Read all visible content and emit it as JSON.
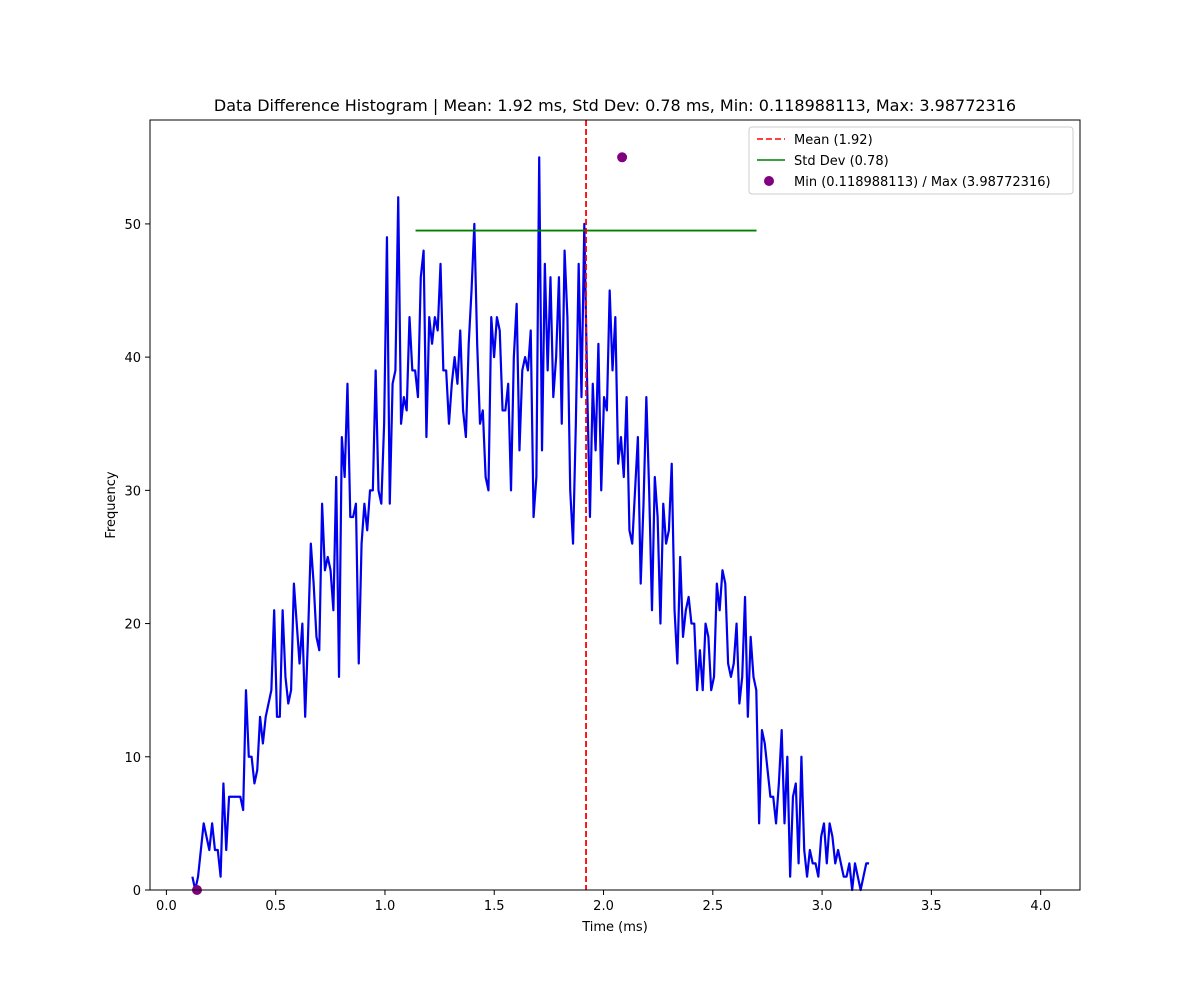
{
  "chart_data": {
    "type": "line",
    "title": "Data Difference Histogram | Mean: 1.92 ms, Std Dev: 0.78 ms, Min: 0.118988113, Max: 3.98772316",
    "xlabel": "Time (ms)",
    "ylabel": "Frequency",
    "xlim": [
      -0.075,
      4.18
    ],
    "ylim": [
      0,
      57.8
    ],
    "xticks": [
      0.0,
      0.5,
      1.0,
      1.5,
      2.0,
      2.5,
      3.0,
      3.5,
      4.0
    ],
    "xtick_labels": [
      "0.0",
      "0.5",
      "1.0",
      "1.5",
      "2.0",
      "2.5",
      "3.0",
      "3.5",
      "4.0"
    ],
    "yticks": [
      0,
      10,
      20,
      30,
      40,
      50
    ],
    "ytick_labels": [
      "0",
      "10",
      "20",
      "30",
      "40",
      "50"
    ],
    "grid": false,
    "legend_placement": "top-right",
    "series": [
      {
        "name": "",
        "color": "#0000ee",
        "x_start": 0.119,
        "x_step": 0.0129,
        "values": [
          1,
          0,
          1,
          3,
          5,
          4,
          3,
          5,
          3,
          3,
          1,
          8,
          3,
          7,
          7,
          7,
          7,
          7,
          6,
          15,
          10,
          10,
          8,
          9,
          13,
          11,
          13,
          14,
          15,
          21,
          13,
          13,
          21,
          16,
          14,
          15,
          23,
          20,
          17,
          20,
          13,
          19,
          26,
          23,
          19,
          18,
          29,
          24,
          25,
          24,
          21,
          31,
          16,
          34,
          31,
          38,
          28,
          28,
          29,
          17,
          26,
          29,
          27,
          30,
          30,
          39,
          30,
          29,
          35,
          49,
          29,
          38,
          39,
          52,
          35,
          37,
          36,
          43,
          39,
          39,
          37,
          46,
          48,
          34,
          43,
          41,
          43,
          42,
          47,
          39,
          39,
          35,
          38,
          40,
          38,
          42,
          36,
          34,
          41,
          45,
          50,
          41,
          35,
          36,
          31,
          30,
          43,
          40,
          43,
          42,
          36,
          36,
          38,
          30,
          40,
          44,
          33,
          39,
          40,
          39,
          42,
          28,
          31,
          55,
          33,
          47,
          39,
          46,
          37,
          40,
          46,
          35,
          48,
          43,
          30,
          26,
          35,
          47,
          37,
          50,
          38,
          28,
          38,
          33,
          41,
          30,
          37,
          36,
          45,
          39,
          43,
          32,
          34,
          31,
          37,
          27,
          26,
          30,
          34,
          23,
          29,
          37,
          30,
          21,
          31,
          28,
          20,
          29,
          26,
          27,
          32,
          21,
          17,
          25,
          19,
          21,
          22,
          20,
          20,
          15,
          18,
          15,
          20,
          19,
          15,
          16,
          23,
          21,
          24,
          23,
          17,
          16,
          17,
          20,
          14,
          16,
          22,
          13,
          19,
          16,
          15,
          5,
          12,
          11,
          9,
          7,
          7,
          5,
          8,
          12,
          5,
          10,
          1,
          7,
          8,
          2,
          10,
          3,
          1,
          3,
          2,
          2,
          1,
          4,
          5,
          2,
          5,
          4,
          2,
          3,
          2,
          1,
          1,
          2,
          0,
          2,
          1,
          0,
          1,
          2,
          2
        ]
      },
      {
        "name": "Mean (1.92)",
        "color": "#ff0000",
        "style": "dashed",
        "x": 1.92
      },
      {
        "name": "Std Dev (0.78)",
        "color": "#008000",
        "style": "solid",
        "x_range": [
          1.14,
          2.7
        ],
        "y": 49.5
      },
      {
        "name": "Min (0.118988113) / Max (3.98772316)",
        "color": "#800080",
        "style": "marker",
        "points": [
          [
            0.14,
            0
          ],
          [
            2.085,
            55
          ]
        ]
      }
    ]
  }
}
